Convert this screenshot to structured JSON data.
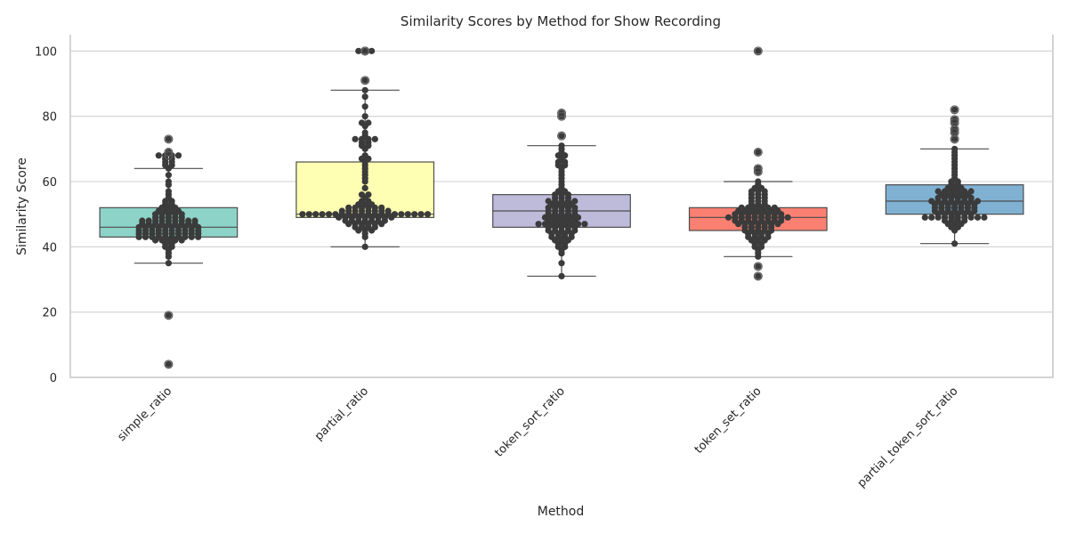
{
  "chart_data": {
    "type": "box-swarm",
    "title": "Similarity Scores by Method for Show Recording",
    "xlabel": "Method",
    "ylabel": "Similarity Score",
    "ylim": [
      0,
      105
    ],
    "yticks": [
      0,
      20,
      40,
      60,
      80,
      100
    ],
    "grid": true,
    "categories": [
      "simple_ratio",
      "partial_ratio",
      "token_sort_ratio",
      "token_set_ratio",
      "partial_token_sort_ratio"
    ],
    "boxes": [
      {
        "category": "simple_ratio",
        "color": "#8dd3c7",
        "q1": 43,
        "median": 46,
        "q3": 52,
        "whisker_low": 35,
        "whisker_high": 64,
        "outliers": [
          19,
          4,
          68,
          69,
          73
        ]
      },
      {
        "category": "partial_ratio",
        "color": "#ffffb3",
        "q1": 49,
        "median": 50,
        "q3": 66,
        "whisker_low": 40,
        "whisker_high": 88,
        "outliers": [
          91,
          100,
          100
        ]
      },
      {
        "category": "token_sort_ratio",
        "color": "#bebada",
        "q1": 46,
        "median": 51,
        "q3": 56,
        "whisker_low": 31,
        "whisker_high": 71,
        "outliers": [
          74,
          80,
          81
        ]
      },
      {
        "category": "token_set_ratio",
        "color": "#fb8072",
        "q1": 45,
        "median": 49,
        "q3": 52,
        "whisker_low": 37,
        "whisker_high": 60,
        "outliers": [
          31,
          34,
          63,
          64,
          69,
          100
        ]
      },
      {
        "category": "partial_token_sort_ratio",
        "color": "#80b1d3",
        "q1": 50,
        "median": 54,
        "q3": 59,
        "whisker_low": 41,
        "whisker_high": 70,
        "outliers": [
          73,
          75,
          76,
          78,
          79,
          82
        ]
      }
    ],
    "points": [
      [
        4,
        19,
        35,
        37,
        38,
        39,
        40,
        40,
        41,
        41,
        42,
        42,
        42,
        42,
        42,
        43,
        43,
        43,
        43,
        43,
        43,
        43,
        43,
        43,
        43,
        44,
        44,
        44,
        44,
        44,
        44,
        44,
        44,
        44,
        44,
        45,
        45,
        45,
        45,
        45,
        45,
        45,
        45,
        45,
        45,
        46,
        46,
        46,
        46,
        46,
        46,
        46,
        46,
        46,
        46,
        47,
        47,
        47,
        47,
        47,
        47,
        47,
        47,
        47,
        48,
        48,
        48,
        48,
        48,
        48,
        48,
        48,
        48,
        49,
        49,
        49,
        49,
        49,
        50,
        50,
        50,
        50,
        50,
        51,
        51,
        51,
        51,
        52,
        52,
        52,
        53,
        53,
        54,
        54,
        55,
        56,
        57,
        59,
        60,
        62,
        64,
        65,
        65,
        66,
        66,
        67,
        67,
        68,
        68,
        68,
        68,
        69,
        73
      ],
      [
        40,
        43,
        44,
        45,
        45,
        45,
        46,
        46,
        46,
        46,
        47,
        47,
        47,
        47,
        47,
        47,
        48,
        48,
        48,
        48,
        48,
        48,
        48,
        49,
        49,
        49,
        49,
        49,
        49,
        49,
        49,
        49,
        50,
        50,
        50,
        50,
        50,
        50,
        50,
        50,
        50,
        50,
        50,
        50,
        50,
        50,
        50,
        50,
        50,
        50,
        50,
        50,
        51,
        51,
        51,
        51,
        51,
        51,
        51,
        51,
        52,
        52,
        52,
        52,
        52,
        52,
        53,
        53,
        53,
        54,
        54,
        55,
        56,
        56,
        58,
        60,
        61,
        62,
        63,
        64,
        65,
        66,
        67,
        67,
        68,
        70,
        71,
        71,
        72,
        72,
        73,
        73,
        73,
        73,
        74,
        75,
        77,
        78,
        78,
        80,
        83,
        86,
        88,
        91,
        100,
        100,
        100
      ],
      [
        31,
        35,
        38,
        39,
        40,
        40,
        41,
        41,
        42,
        42,
        42,
        43,
        43,
        43,
        43,
        44,
        44,
        44,
        44,
        45,
        45,
        45,
        45,
        45,
        46,
        46,
        46,
        46,
        46,
        47,
        47,
        47,
        47,
        47,
        47,
        47,
        47,
        48,
        48,
        48,
        48,
        48,
        49,
        49,
        49,
        49,
        49,
        49,
        50,
        50,
        50,
        50,
        50,
        51,
        51,
        51,
        51,
        51,
        52,
        52,
        52,
        52,
        52,
        53,
        53,
        53,
        53,
        54,
        54,
        54,
        54,
        54,
        55,
        55,
        55,
        56,
        56,
        56,
        57,
        57,
        58,
        59,
        60,
        61,
        62,
        63,
        64,
        65,
        65,
        66,
        66,
        67,
        68,
        68,
        69,
        70,
        71,
        74,
        80,
        81
      ],
      [
        31,
        34,
        37,
        38,
        39,
        40,
        40,
        41,
        41,
        42,
        42,
        42,
        43,
        43,
        43,
        43,
        44,
        44,
        44,
        44,
        45,
        45,
        45,
        45,
        45,
        46,
        46,
        46,
        46,
        46,
        47,
        47,
        47,
        47,
        47,
        47,
        47,
        48,
        48,
        48,
        48,
        48,
        48,
        48,
        48,
        49,
        49,
        49,
        49,
        49,
        49,
        49,
        49,
        49,
        49,
        50,
        50,
        50,
        50,
        50,
        50,
        50,
        50,
        51,
        51,
        51,
        51,
        51,
        51,
        51,
        52,
        52,
        52,
        52,
        52,
        52,
        53,
        53,
        53,
        54,
        54,
        54,
        55,
        55,
        55,
        56,
        56,
        56,
        57,
        57,
        57,
        58,
        58,
        59,
        60,
        63,
        64,
        69,
        100
      ],
      [
        41,
        45,
        46,
        46,
        47,
        47,
        47,
        48,
        48,
        48,
        48,
        49,
        49,
        49,
        49,
        49,
        49,
        49,
        49,
        49,
        49,
        50,
        50,
        50,
        50,
        50,
        50,
        51,
        51,
        51,
        51,
        51,
        51,
        51,
        52,
        52,
        52,
        52,
        52,
        52,
        52,
        53,
        53,
        53,
        53,
        53,
        53,
        53,
        54,
        54,
        54,
        54,
        54,
        54,
        54,
        54,
        55,
        55,
        55,
        55,
        55,
        55,
        56,
        56,
        56,
        56,
        56,
        57,
        57,
        57,
        57,
        57,
        57,
        58,
        58,
        58,
        59,
        59,
        60,
        60,
        61,
        62,
        63,
        64,
        65,
        66,
        67,
        68,
        69,
        70,
        73,
        75,
        76,
        78,
        79,
        82
      ]
    ]
  }
}
